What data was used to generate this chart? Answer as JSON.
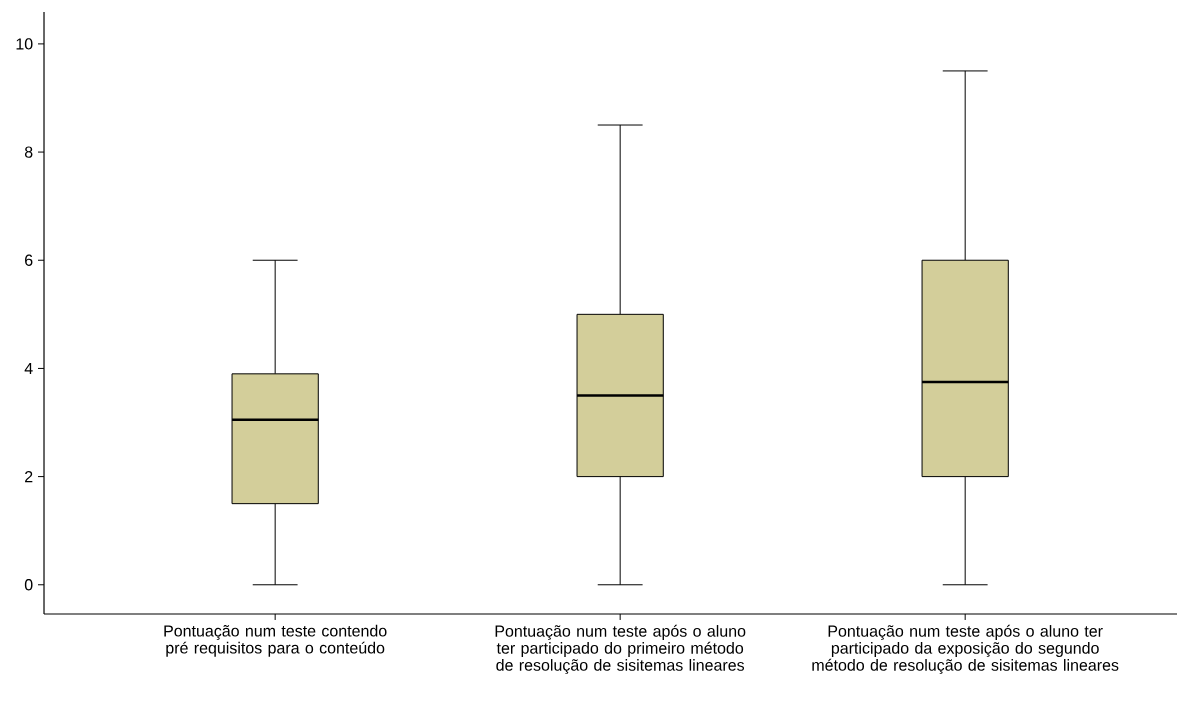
{
  "chart_data": {
    "type": "box",
    "categories": [
      "Pontuação num teste contendo pré requisitos para o conteúdo",
      "Pontuação num teste após o aluno ter participado do primeiro método de resolução de sisitemas lineares",
      "Pontuação num teste após o aluno ter participado da exposição do segundo método de resolução de sisitemas lineares"
    ],
    "boxes": [
      {
        "low": 0,
        "q1": 1.5,
        "median": 3.05,
        "q3": 3.9,
        "high": 6
      },
      {
        "low": 0,
        "q1": 2,
        "median": 3.5,
        "q3": 5,
        "high": 8.5
      },
      {
        "low": 0,
        "q1": 2,
        "median": 3.75,
        "q3": 6,
        "high": 9.5
      }
    ],
    "color": "#d3ce9a",
    "ylim": [
      -0.54,
      10.59
    ],
    "yticks": [
      0,
      2,
      4,
      6,
      8,
      10
    ]
  }
}
